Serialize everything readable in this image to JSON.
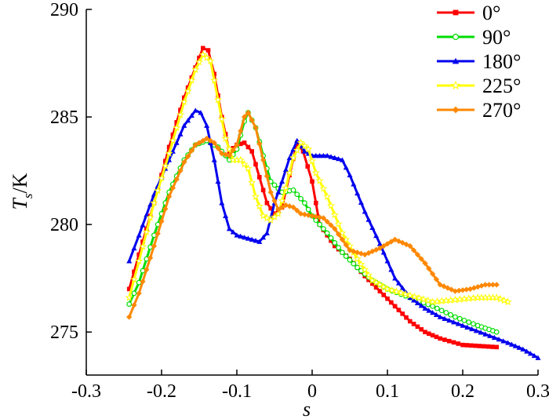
{
  "chart_data": {
    "type": "line",
    "xlabel": "s",
    "ylabel_symbol": "T",
    "ylabel_subscript": "s",
    "ylabel_unit": "/K",
    "xlim": [
      -0.3,
      0.3
    ],
    "ylim": [
      273,
      290
    ],
    "x_ticks": [
      -0.3,
      -0.2,
      -0.1,
      0,
      0.1,
      0.2,
      0.3
    ],
    "x_tick_labels": [
      "-0.3",
      "-0.2",
      "-0.1",
      "0",
      "0.1",
      "0.2",
      "0.3"
    ],
    "y_ticks": [
      275,
      280,
      285,
      290
    ],
    "y_tick_labels": [
      "275",
      "280",
      "285",
      "290"
    ],
    "grid": false,
    "legend_position": "top-right",
    "series": [
      {
        "name": "0°",
        "color": "#ff0000",
        "marker": "square",
        "points": [
          [
            -0.243,
            277.0
          ],
          [
            -0.23,
            278.6
          ],
          [
            -0.21,
            281.0
          ],
          [
            -0.19,
            283.6
          ],
          [
            -0.17,
            285.9
          ],
          [
            -0.155,
            287.3
          ],
          [
            -0.145,
            288.2
          ],
          [
            -0.138,
            288.1
          ],
          [
            -0.13,
            287.0
          ],
          [
            -0.12,
            285.0
          ],
          [
            -0.11,
            283.4
          ],
          [
            -0.1,
            283.7
          ],
          [
            -0.09,
            283.8
          ],
          [
            -0.08,
            283.4
          ],
          [
            -0.07,
            282.2
          ],
          [
            -0.06,
            281.0
          ],
          [
            -0.05,
            280.5
          ],
          [
            -0.04,
            280.8
          ],
          [
            -0.03,
            282.3
          ],
          [
            -0.02,
            283.8
          ],
          [
            -0.012,
            283.4
          ],
          [
            0,
            282.0
          ],
          [
            0.01,
            280.0
          ],
          [
            0.03,
            279.0
          ],
          [
            0.05,
            278.4
          ],
          [
            0.07,
            277.6
          ],
          [
            0.09,
            276.9
          ],
          [
            0.11,
            276.2
          ],
          [
            0.13,
            275.5
          ],
          [
            0.15,
            275.0
          ],
          [
            0.17,
            274.7
          ],
          [
            0.2,
            274.4
          ],
          [
            0.245,
            274.3
          ]
        ]
      },
      {
        "name": "90°",
        "color": "#00dd00",
        "marker": "circle",
        "points": [
          [
            -0.243,
            276.3
          ],
          [
            -0.23,
            277.3
          ],
          [
            -0.21,
            279.5
          ],
          [
            -0.19,
            281.5
          ],
          [
            -0.17,
            283.0
          ],
          [
            -0.155,
            283.7
          ],
          [
            -0.14,
            283.9
          ],
          [
            -0.125,
            283.6
          ],
          [
            -0.11,
            283.0
          ],
          [
            -0.1,
            283.5
          ],
          [
            -0.09,
            284.8
          ],
          [
            -0.085,
            285.2
          ],
          [
            -0.075,
            284.5
          ],
          [
            -0.065,
            283.2
          ],
          [
            -0.055,
            282.0
          ],
          [
            -0.04,
            281.5
          ],
          [
            -0.025,
            281.6
          ],
          [
            -0.01,
            281.0
          ],
          [
            0,
            280.4
          ],
          [
            0.02,
            279.6
          ],
          [
            0.04,
            278.7
          ],
          [
            0.06,
            278.0
          ],
          [
            0.08,
            277.4
          ],
          [
            0.1,
            277.0
          ],
          [
            0.13,
            276.6
          ],
          [
            0.16,
            276.2
          ],
          [
            0.19,
            275.7
          ],
          [
            0.22,
            275.3
          ],
          [
            0.245,
            275.0
          ]
        ]
      },
      {
        "name": "180°",
        "color": "#0000ee",
        "marker": "triangle",
        "points": [
          [
            -0.243,
            278.3
          ],
          [
            -0.23,
            279.5
          ],
          [
            -0.21,
            281.4
          ],
          [
            -0.19,
            283.0
          ],
          [
            -0.17,
            284.6
          ],
          [
            -0.155,
            285.3
          ],
          [
            -0.148,
            285.2
          ],
          [
            -0.14,
            284.6
          ],
          [
            -0.13,
            283.0
          ],
          [
            -0.12,
            281.0
          ],
          [
            -0.11,
            279.8
          ],
          [
            -0.1,
            279.5
          ],
          [
            -0.09,
            279.4
          ],
          [
            -0.08,
            279.3
          ],
          [
            -0.07,
            279.2
          ],
          [
            -0.06,
            279.6
          ],
          [
            -0.05,
            281.0
          ],
          [
            -0.04,
            282.0
          ],
          [
            -0.03,
            283.1
          ],
          [
            -0.02,
            283.9
          ],
          [
            -0.01,
            283.4
          ],
          [
            0,
            283.2
          ],
          [
            0.01,
            283.2
          ],
          [
            0.02,
            283.2
          ],
          [
            0.03,
            283.1
          ],
          [
            0.04,
            283.0
          ],
          [
            0.05,
            282.3
          ],
          [
            0.07,
            280.6
          ],
          [
            0.09,
            279.1
          ],
          [
            0.11,
            277.5
          ],
          [
            0.13,
            276.6
          ],
          [
            0.15,
            276.1
          ],
          [
            0.17,
            275.7
          ],
          [
            0.2,
            275.3
          ],
          [
            0.23,
            274.9
          ],
          [
            0.26,
            274.5
          ],
          [
            0.28,
            274.2
          ],
          [
            0.3,
            273.8
          ]
        ]
      },
      {
        "name": "225°",
        "color": "#ffff00",
        "marker": "star",
        "points": [
          [
            -0.243,
            276.6
          ],
          [
            -0.23,
            278.3
          ],
          [
            -0.21,
            281.0
          ],
          [
            -0.19,
            283.3
          ],
          [
            -0.17,
            285.7
          ],
          [
            -0.155,
            287.2
          ],
          [
            -0.145,
            287.9
          ],
          [
            -0.135,
            287.6
          ],
          [
            -0.125,
            285.8
          ],
          [
            -0.115,
            284.0
          ],
          [
            -0.105,
            283.0
          ],
          [
            -0.095,
            283.0
          ],
          [
            -0.085,
            282.6
          ],
          [
            -0.075,
            281.3
          ],
          [
            -0.065,
            280.4
          ],
          [
            -0.055,
            280.2
          ],
          [
            -0.045,
            280.5
          ],
          [
            -0.035,
            281.7
          ],
          [
            -0.025,
            283.1
          ],
          [
            -0.015,
            283.8
          ],
          [
            -0.005,
            283.5
          ],
          [
            0.005,
            282.4
          ],
          [
            0.02,
            281.3
          ],
          [
            0.04,
            279.6
          ],
          [
            0.06,
            278.4
          ],
          [
            0.08,
            277.4
          ],
          [
            0.1,
            277.0
          ],
          [
            0.13,
            276.7
          ],
          [
            0.16,
            276.4
          ],
          [
            0.19,
            276.5
          ],
          [
            0.22,
            276.6
          ],
          [
            0.245,
            276.6
          ],
          [
            0.26,
            276.4
          ]
        ]
      },
      {
        "name": "270°",
        "color": "#ff8800",
        "marker": "diamond",
        "points": [
          [
            -0.243,
            275.7
          ],
          [
            -0.23,
            276.8
          ],
          [
            -0.21,
            279.0
          ],
          [
            -0.19,
            281.3
          ],
          [
            -0.17,
            282.9
          ],
          [
            -0.155,
            283.7
          ],
          [
            -0.14,
            284.0
          ],
          [
            -0.13,
            283.8
          ],
          [
            -0.12,
            283.3
          ],
          [
            -0.11,
            283.2
          ],
          [
            -0.1,
            283.7
          ],
          [
            -0.09,
            285.0
          ],
          [
            -0.085,
            285.2
          ],
          [
            -0.075,
            284.5
          ],
          [
            -0.065,
            283.0
          ],
          [
            -0.055,
            281.5
          ],
          [
            -0.045,
            280.7
          ],
          [
            -0.035,
            280.9
          ],
          [
            -0.025,
            280.8
          ],
          [
            -0.015,
            280.5
          ],
          [
            0,
            280.4
          ],
          [
            0.015,
            280.3
          ],
          [
            0.03,
            279.8
          ],
          [
            0.05,
            278.8
          ],
          [
            0.07,
            278.6
          ],
          [
            0.09,
            278.9
          ],
          [
            0.11,
            279.3
          ],
          [
            0.13,
            279.0
          ],
          [
            0.15,
            278.2
          ],
          [
            0.17,
            277.2
          ],
          [
            0.19,
            276.9
          ],
          [
            0.21,
            277.0
          ],
          [
            0.23,
            277.2
          ],
          [
            0.245,
            277.2
          ]
        ]
      }
    ]
  }
}
